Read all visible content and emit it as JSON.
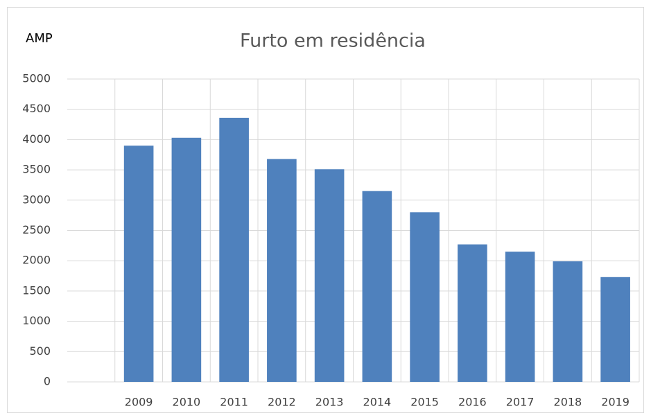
{
  "chart_data": {
    "type": "bar",
    "title": "Furto em residência",
    "annotations": [
      "AMP"
    ],
    "categories": [
      null,
      "2009",
      "2010",
      "2011",
      "2012",
      "2013",
      "2014",
      "2015",
      "2016",
      "2017",
      "2018",
      "2019"
    ],
    "values": [
      null,
      3900,
      4030,
      4360,
      3680,
      3510,
      3150,
      2800,
      2270,
      2150,
      1990,
      1730
    ],
    "color": "#4f81bd",
    "ylim": [
      0,
      5000
    ],
    "yticks": [
      0,
      500,
      1000,
      1500,
      2000,
      2500,
      3000,
      3500,
      4000,
      4500,
      5000
    ],
    "grid": true
  }
}
